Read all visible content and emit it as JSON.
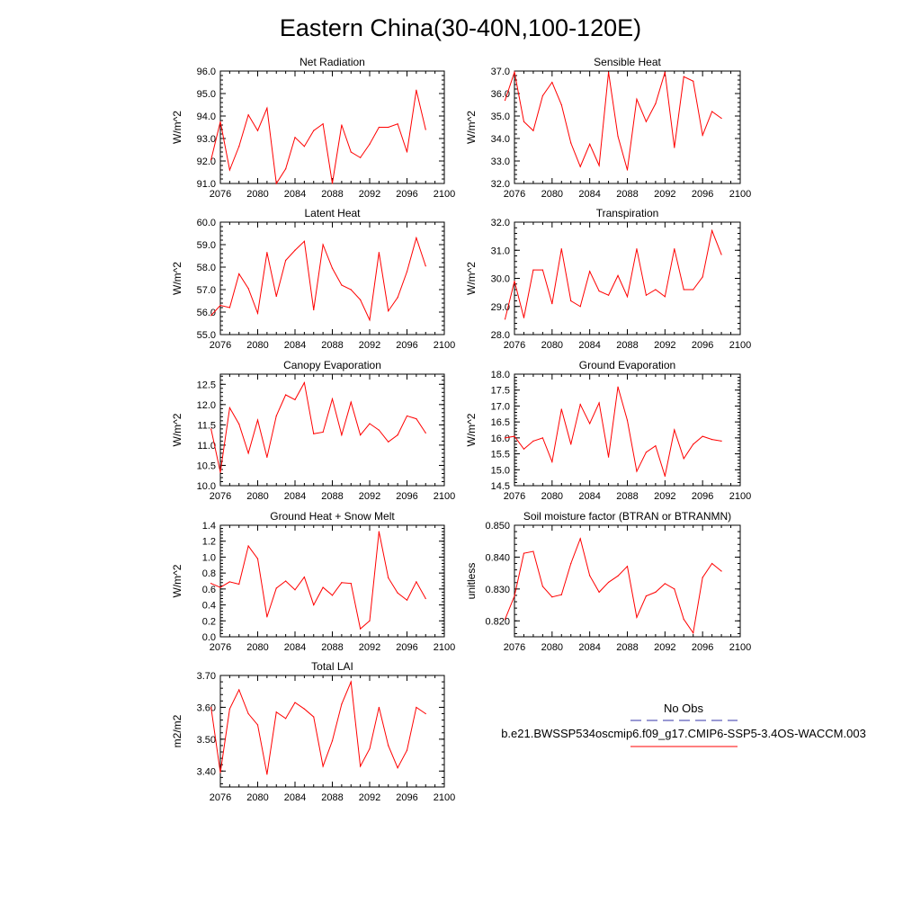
{
  "figure_title": "Eastern China(30-40N,100-120E)",
  "legend": {
    "obs_label": "No Obs",
    "model_label": "b.e21.BWSSP534oscmip6.f09_g17.CMIP6-SSP5-3.4OS-WACCM.003",
    "obs_color": "#3333aa",
    "model_color": "#ff0000"
  },
  "chart_data": [
    {
      "type": "line",
      "title": "Net Radiation",
      "xlabel": "",
      "ylabel": "W/m^2",
      "xlim": [
        2076,
        2100
      ],
      "ylim": [
        91.0,
        96.0
      ],
      "xticks": [
        "2076",
        "2080",
        "2084",
        "2088",
        "2092",
        "2096",
        "2100"
      ],
      "yticks": [
        "91.0",
        "92.0",
        "93.0",
        "94.0",
        "95.0",
        "96.0"
      ],
      "series": [
        {
          "name": "b.e21.BWSSP534oscmip6.f09_g17.CMIP6-SSP5-3.4OS-WACCM.003",
          "color": "#ff0000",
          "x": [
            2075,
            2076,
            2077,
            2078,
            2079,
            2080,
            2081,
            2082,
            2083,
            2084,
            2085,
            2086,
            2087,
            2088,
            2089,
            2090,
            2091,
            2092,
            2093,
            2094,
            2095,
            2096,
            2097,
            2098,
            2099
          ],
          "values": [
            92.05,
            93.75,
            91.6,
            92.65,
            94.05,
            93.35,
            94.35,
            91.0,
            91.65,
            93.05,
            92.65,
            93.35,
            93.65,
            91.0,
            93.6,
            92.4,
            92.15,
            92.75,
            93.5,
            93.5,
            93.65,
            92.4,
            95.15,
            93.4,
            null
          ]
        }
      ]
    },
    {
      "type": "line",
      "title": "Sensible Heat",
      "xlabel": "",
      "ylabel": "W/m^2",
      "xlim": [
        2076,
        2100
      ],
      "ylim": [
        32.0,
        37.0
      ],
      "xticks": [
        "2076",
        "2080",
        "2084",
        "2088",
        "2092",
        "2096",
        "2100"
      ],
      "yticks": [
        "32.0",
        "33.0",
        "34.0",
        "35.0",
        "36.0",
        "37.0"
      ],
      "series": [
        {
          "name": "b.e21.BWSSP534oscmip6.f09_g17.CMIP6-SSP5-3.4OS-WACCM.003",
          "color": "#ff0000",
          "x": [
            2075,
            2076,
            2077,
            2078,
            2079,
            2080,
            2081,
            2082,
            2083,
            2084,
            2085,
            2086,
            2087,
            2088,
            2089,
            2090,
            2091,
            2092,
            2093,
            2094,
            2095,
            2096,
            2097,
            2098,
            2099
          ],
          "values": [
            35.7,
            36.95,
            34.75,
            34.35,
            35.9,
            36.5,
            35.5,
            33.8,
            32.75,
            33.75,
            32.8,
            36.95,
            34.1,
            32.6,
            35.75,
            34.75,
            35.55,
            36.95,
            33.6,
            36.75,
            36.55,
            34.15,
            35.2,
            34.9,
            null
          ]
        }
      ]
    },
    {
      "type": "line",
      "title": "Latent Heat",
      "xlabel": "",
      "ylabel": "W/m^2",
      "xlim": [
        2076,
        2100
      ],
      "ylim": [
        55.0,
        60.0
      ],
      "xticks": [
        "2076",
        "2080",
        "2084",
        "2088",
        "2092",
        "2096",
        "2100"
      ],
      "yticks": [
        "55.0",
        "56.0",
        "57.0",
        "58.0",
        "59.0",
        "60.0"
      ],
      "series": [
        {
          "name": "b.e21.BWSSP534oscmip6.f09_g17.CMIP6-SSP5-3.4OS-WACCM.003",
          "color": "#ff0000",
          "x": [
            2075,
            2076,
            2077,
            2078,
            2079,
            2080,
            2081,
            2082,
            2083,
            2084,
            2085,
            2086,
            2087,
            2088,
            2089,
            2090,
            2091,
            2092,
            2093,
            2094,
            2095,
            2096,
            2097,
            2098,
            2099
          ],
          "values": [
            55.85,
            56.3,
            56.2,
            57.7,
            57.05,
            55.95,
            58.65,
            56.7,
            58.3,
            58.75,
            59.15,
            56.1,
            59.0,
            57.95,
            57.2,
            57.0,
            56.55,
            55.65,
            58.65,
            56.05,
            56.65,
            57.8,
            59.3,
            58.05,
            null
          ]
        }
      ]
    },
    {
      "type": "line",
      "title": "Transpiration",
      "xlabel": "",
      "ylabel": "W/m^2",
      "xlim": [
        2076,
        2100
      ],
      "ylim": [
        28.0,
        32.0
      ],
      "xticks": [
        "2076",
        "2080",
        "2084",
        "2088",
        "2092",
        "2096",
        "2100"
      ],
      "yticks": [
        "28.0",
        "29.0",
        "30.0",
        "31.0",
        "32.0"
      ],
      "series": [
        {
          "name": "b.e21.BWSSP534oscmip6.f09_g17.CMIP6-SSP5-3.4OS-WACCM.003",
          "color": "#ff0000",
          "x": [
            2075,
            2076,
            2077,
            2078,
            2079,
            2080,
            2081,
            2082,
            2083,
            2084,
            2085,
            2086,
            2087,
            2088,
            2089,
            2090,
            2091,
            2092,
            2093,
            2094,
            2095,
            2096,
            2097,
            2098,
            2099
          ],
          "values": [
            28.55,
            29.9,
            28.6,
            30.3,
            30.3,
            29.1,
            31.05,
            29.2,
            29.0,
            30.25,
            29.55,
            29.4,
            30.1,
            29.35,
            31.05,
            29.4,
            29.6,
            29.35,
            31.05,
            29.6,
            29.6,
            30.05,
            31.7,
            30.85,
            null
          ]
        }
      ]
    },
    {
      "type": "line",
      "title": "Canopy Evaporation",
      "xlabel": "",
      "ylabel": "W/m^2",
      "xlim": [
        2076,
        2100
      ],
      "ylim": [
        10.0,
        12.75
      ],
      "xticks": [
        "2076",
        "2080",
        "2084",
        "2088",
        "2092",
        "2096",
        "2100"
      ],
      "yticks": [
        "10.0",
        "10.5",
        "11.0",
        "11.5",
        "12.0",
        "12.5"
      ],
      "series": [
        {
          "name": "b.e21.BWSSP534oscmip6.f09_g17.CMIP6-SSP5-3.4OS-WACCM.003",
          "color": "#ff0000",
          "x": [
            2075,
            2076,
            2077,
            2078,
            2079,
            2080,
            2081,
            2082,
            2083,
            2084,
            2085,
            2086,
            2087,
            2088,
            2089,
            2090,
            2091,
            2092,
            2093,
            2094,
            2095,
            2096,
            2097,
            2098,
            2099
          ],
          "values": [
            11.4,
            10.33,
            11.92,
            11.52,
            10.8,
            11.62,
            10.7,
            11.72,
            12.24,
            12.12,
            12.54,
            11.28,
            11.32,
            12.14,
            11.25,
            12.06,
            11.25,
            11.53,
            11.37,
            11.08,
            11.25,
            11.72,
            11.65,
            11.3,
            null
          ]
        }
      ]
    },
    {
      "type": "line",
      "title": "Ground Evaporation",
      "xlabel": "",
      "ylabel": "W/m^2",
      "xlim": [
        2076,
        2100
      ],
      "ylim": [
        14.5,
        18.0
      ],
      "xticks": [
        "2076",
        "2080",
        "2084",
        "2088",
        "2092",
        "2096",
        "2100"
      ],
      "yticks": [
        "14.5",
        "15.0",
        "15.5",
        "16.0",
        "16.5",
        "17.0",
        "17.5",
        "18.0"
      ],
      "series": [
        {
          "name": "b.e21.BWSSP534oscmip6.f09_g17.CMIP6-SSP5-3.4OS-WACCM.003",
          "color": "#ff0000",
          "x": [
            2075,
            2076,
            2077,
            2078,
            2079,
            2080,
            2081,
            2082,
            2083,
            2084,
            2085,
            2086,
            2087,
            2088,
            2089,
            2090,
            2091,
            2092,
            2093,
            2094,
            2095,
            2096,
            2097,
            2098,
            2099
          ],
          "values": [
            16.0,
            16.05,
            15.65,
            15.9,
            16.0,
            15.25,
            16.9,
            15.8,
            17.05,
            16.45,
            17.1,
            15.4,
            17.6,
            16.55,
            14.95,
            15.55,
            15.75,
            14.8,
            16.25,
            15.35,
            15.8,
            16.05,
            15.95,
            15.9,
            null
          ]
        }
      ]
    },
    {
      "type": "line",
      "title": "Ground Heat + Snow Melt",
      "xlabel": "",
      "ylabel": "W/m^2",
      "xlim": [
        2076,
        2100
      ],
      "ylim": [
        0.0,
        1.4
      ],
      "xticks": [
        "2076",
        "2080",
        "2084",
        "2088",
        "2092",
        "2096",
        "2100"
      ],
      "yticks": [
        "0.0",
        "0.2",
        "0.4",
        "0.6",
        "0.8",
        "1.0",
        "1.2",
        "1.4"
      ],
      "series": [
        {
          "name": "b.e21.BWSSP534oscmip6.f09_g17.CMIP6-SSP5-3.4OS-WACCM.003",
          "color": "#ff0000",
          "x": [
            2075,
            2076,
            2077,
            2078,
            2079,
            2080,
            2081,
            2082,
            2083,
            2084,
            2085,
            2086,
            2087,
            2088,
            2089,
            2090,
            2091,
            2092,
            2093,
            2094,
            2095,
            2096,
            2097,
            2098,
            2099
          ],
          "values": [
            0.67,
            0.62,
            0.69,
            0.66,
            1.14,
            0.98,
            0.25,
            0.61,
            0.7,
            0.59,
            0.75,
            0.4,
            0.62,
            0.52,
            0.68,
            0.67,
            0.1,
            0.2,
            1.32,
            0.74,
            0.55,
            0.46,
            0.69,
            0.48,
            null
          ]
        }
      ]
    },
    {
      "type": "line",
      "title": "Soil moisture factor (BTRAN or BTRANMN)",
      "xlabel": "",
      "ylabel": "unitless",
      "xlim": [
        2076,
        2100
      ],
      "ylim": [
        0.815,
        0.85
      ],
      "xticks": [
        "2076",
        "2080",
        "2084",
        "2088",
        "2092",
        "2096",
        "2100"
      ],
      "yticks": [
        "0.820",
        "0.830",
        "0.840",
        "0.850"
      ],
      "series": [
        {
          "name": "b.e21.BWSSP534oscmip6.f09_g17.CMIP6-SSP5-3.4OS-WACCM.003",
          "color": "#ff0000",
          "x": [
            2075,
            2076,
            2077,
            2078,
            2079,
            2080,
            2081,
            2082,
            2083,
            2084,
            2085,
            2086,
            2087,
            2088,
            2089,
            2090,
            2091,
            2092,
            2093,
            2094,
            2095,
            2096,
            2097,
            2098,
            2099
          ],
          "values": [
            0.8205,
            0.8278,
            0.8412,
            0.8418,
            0.8308,
            0.8275,
            0.8282,
            0.838,
            0.8458,
            0.8342,
            0.829,
            0.8321,
            0.8341,
            0.8371,
            0.8211,
            0.8278,
            0.829,
            0.8317,
            0.83,
            0.8205,
            0.8162,
            0.8336,
            0.838,
            0.8356,
            null
          ]
        }
      ]
    },
    {
      "type": "line",
      "title": "Total LAI",
      "xlabel": "",
      "ylabel": "m2/m2",
      "xlim": [
        2076,
        2100
      ],
      "ylim": [
        3.35,
        3.7
      ],
      "xticks": [
        "2076",
        "2080",
        "2084",
        "2088",
        "2092",
        "2096",
        "2100"
      ],
      "yticks": [
        "3.40",
        "3.50",
        "3.60",
        "3.70"
      ],
      "series": [
        {
          "name": "b.e21.BWSSP534oscmip6.f09_g17.CMIP6-SSP5-3.4OS-WACCM.003",
          "color": "#ff0000",
          "x": [
            2075,
            2076,
            2077,
            2078,
            2079,
            2080,
            2081,
            2082,
            2083,
            2084,
            2085,
            2086,
            2087,
            2088,
            2089,
            2090,
            2091,
            2092,
            2093,
            2094,
            2095,
            2096,
            2097,
            2098,
            2099
          ],
          "values": [
            3.6,
            3.395,
            3.595,
            3.655,
            3.58,
            3.545,
            3.39,
            3.585,
            3.565,
            3.615,
            3.595,
            3.57,
            3.415,
            3.495,
            3.61,
            3.68,
            3.415,
            3.47,
            3.6,
            3.48,
            3.41,
            3.465,
            3.6,
            3.58,
            null
          ]
        }
      ]
    }
  ]
}
